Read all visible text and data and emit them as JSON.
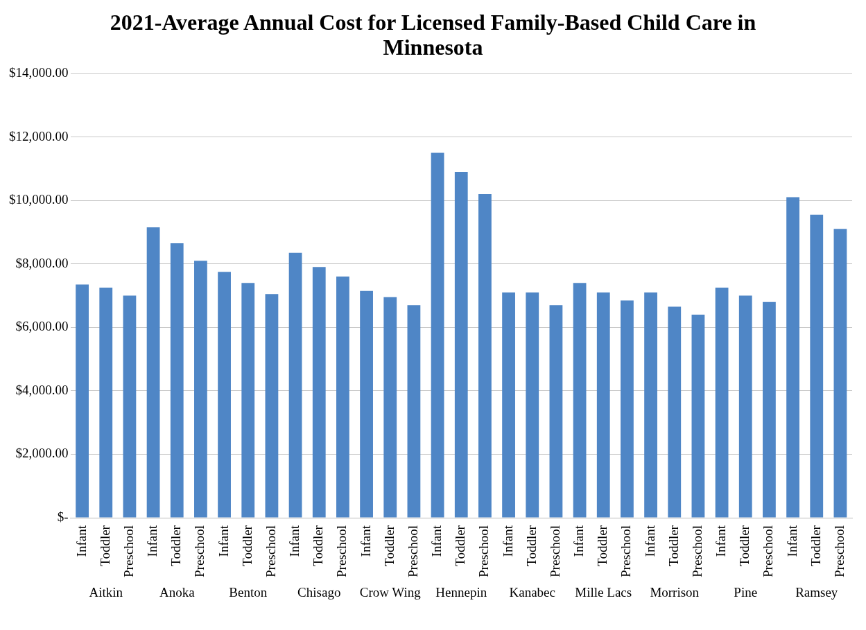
{
  "chart_data": {
    "type": "bar",
    "title": "2021-Average Annual Cost for Licensed Family-Based Child Care in Minnesota",
    "categories": [
      "Infant",
      "Toddler",
      "Preschool",
      "Infant",
      "Toddler",
      "Preschool",
      "Infant",
      "Toddler",
      "Preschool",
      "Infant",
      "Toddler",
      "Preschool",
      "Infant",
      "Toddler",
      "Preschool",
      "Infant",
      "Toddler",
      "Preschool",
      "Infant",
      "Toddler",
      "Preschool",
      "Infant",
      "Toddler",
      "Preschool",
      "Infant",
      "Toddler",
      "Preschool",
      "Infant",
      "Toddler",
      "Preschool",
      "Infant",
      "Toddler",
      "Preschool"
    ],
    "values": [
      7350,
      7250,
      7000,
      9150,
      8650,
      8100,
      7750,
      7400,
      7050,
      8350,
      7900,
      7600,
      7150,
      6950,
      6700,
      11500,
      10900,
      10200,
      7100,
      7100,
      6700,
      7400,
      7100,
      6850,
      7100,
      6650,
      6400,
      7250,
      7000,
      6800,
      10100,
      9550,
      9100
    ],
    "color": "#4f86c6",
    "ylim": [
      0,
      14000
    ],
    "yticks": [
      {
        "value": 0,
        "label": "$-"
      },
      {
        "value": 2000,
        "label": "$2,000.00"
      },
      {
        "value": 4000,
        "label": "$4,000.00"
      },
      {
        "value": 6000,
        "label": "$6,000.00"
      },
      {
        "value": 8000,
        "label": "$8,000.00"
      },
      {
        "value": 10000,
        "label": "$10,000.00"
      },
      {
        "value": 12000,
        "label": "$12,000.00"
      },
      {
        "value": 14000,
        "label": "$14,000.00"
      }
    ],
    "grid": "y",
    "annotations": [
      "Aitkin",
      "Anoka",
      "Benton",
      "Chisago",
      "Crow Wing",
      "Hennepin",
      "Kanabec",
      "Mille Lacs",
      "Morrison",
      "Pine",
      "Ramsey"
    ]
  }
}
